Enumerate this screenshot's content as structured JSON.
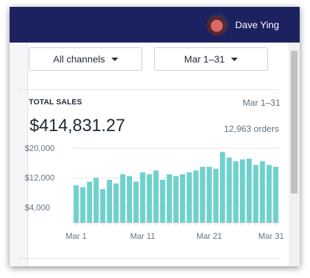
{
  "header": {
    "user_name": "Dave Ying"
  },
  "filters": {
    "channel_label": "All channels",
    "date_label": "Mar 1–31"
  },
  "card": {
    "title": "TOTAL SALES",
    "date_range": "Mar 1–31",
    "total": "$414,831.27",
    "orders": "12,963 orders"
  },
  "colors": {
    "topbar": "#1c2260",
    "bar": "#6fd1cc"
  },
  "chart_data": {
    "type": "bar",
    "title": "",
    "xlabel": "",
    "ylabel": "",
    "ylim": [
      0,
      20000
    ],
    "y_ticks": [
      4000,
      12000,
      20000
    ],
    "y_tick_labels": [
      "$4,000",
      "$12,000",
      "$20,000"
    ],
    "x_tick_labels": [
      "Mar 1",
      "Mar 11",
      "Mar 21",
      "Mar 31"
    ],
    "categories": [
      "Mar 1",
      "Mar 2",
      "Mar 3",
      "Mar 4",
      "Mar 5",
      "Mar 6",
      "Mar 7",
      "Mar 8",
      "Mar 9",
      "Mar 10",
      "Mar 11",
      "Mar 12",
      "Mar 13",
      "Mar 14",
      "Mar 15",
      "Mar 16",
      "Mar 17",
      "Mar 18",
      "Mar 19",
      "Mar 20",
      "Mar 21",
      "Mar 22",
      "Mar 23",
      "Mar 24",
      "Mar 25",
      "Mar 26",
      "Mar 27",
      "Mar 28",
      "Mar 29",
      "Mar 30",
      "Mar 31"
    ],
    "values": [
      10000,
      9500,
      11000,
      12000,
      9000,
      11500,
      10500,
      13000,
      12500,
      11000,
      13500,
      13000,
      14000,
      11500,
      13000,
      12500,
      13000,
      13500,
      14000,
      15000,
      15000,
      14500,
      19000,
      17500,
      16500,
      17000,
      17200,
      15500,
      16500,
      15500,
      15000
    ]
  }
}
